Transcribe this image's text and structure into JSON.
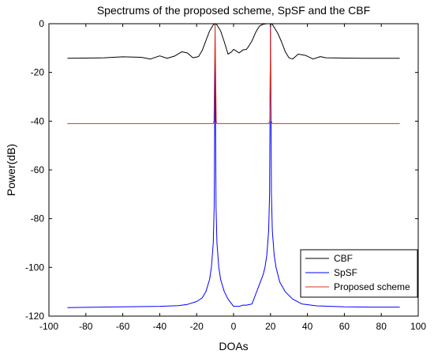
{
  "chart_data": {
    "type": "line",
    "title": "Spectrums of the proposed scheme, SpSF and the CBF",
    "xlabel": "DOAs",
    "ylabel": "Power(dB)",
    "xlim": [
      -100,
      100
    ],
    "ylim": [
      -120,
      0
    ],
    "xticks": [
      -100,
      -80,
      -60,
      -40,
      -20,
      0,
      20,
      40,
      60,
      80,
      100
    ],
    "yticks": [
      0,
      -20,
      -40,
      -60,
      -80,
      -100,
      -120
    ],
    "grid": false,
    "legend_position": "bottom-right",
    "series": [
      {
        "name": "CBF",
        "color": "#000000",
        "x": [
          -90,
          -80,
          -70,
          -60,
          -50,
          -45,
          -40,
          -36,
          -32,
          -28,
          -25,
          -22,
          -19,
          -17,
          -15,
          -13,
          -11,
          -10,
          -9,
          -7,
          -5,
          -3,
          -1,
          0,
          2,
          3,
          5,
          7,
          8,
          10,
          12,
          14,
          16,
          18,
          19,
          20,
          21,
          22,
          24,
          26,
          28,
          30,
          32,
          35,
          39,
          43,
          47,
          50,
          60,
          70,
          80,
          90
        ],
        "y": [
          -14.2,
          -14.1,
          -14.0,
          -13.6,
          -13.8,
          -14.5,
          -13.2,
          -14.2,
          -13.3,
          -11.5,
          -12.0,
          -14.0,
          -13.5,
          -11.0,
          -7.0,
          -3.0,
          -0.5,
          0,
          -0.5,
          -3.0,
          -7.5,
          -12.5,
          -11.5,
          -10.5,
          -11.5,
          -12.0,
          -10.8,
          -10.5,
          -9.5,
          -7.0,
          -3.5,
          -1.0,
          -0.2,
          0,
          0,
          0,
          -0.3,
          -1.5,
          -4.0,
          -7.5,
          -11.5,
          -14.0,
          -14.5,
          -12.5,
          -13.0,
          -14.5,
          -13.5,
          -14.0,
          -14.1,
          -14.2,
          -14.2,
          -14.2
        ]
      },
      {
        "name": "SpSF",
        "color": "#0000ff",
        "x": [
          -90,
          -80,
          -60,
          -40,
          -30,
          -25,
          -20,
          -17,
          -15,
          -13,
          -12,
          -11,
          -10.5,
          -10,
          -9.5,
          -9,
          -8,
          -7,
          -5,
          -3,
          -1,
          0,
          3,
          5,
          7,
          10,
          12,
          14,
          16,
          17,
          18,
          19,
          19.5,
          20,
          20.5,
          21,
          22,
          23,
          25,
          28,
          32,
          37,
          45,
          60,
          75,
          90
        ],
        "y": [
          -116.5,
          -116.4,
          -116.2,
          -116.0,
          -115.7,
          -115.2,
          -114.0,
          -112.5,
          -110.0,
          -105.0,
          -100.0,
          -90.0,
          -75.0,
          -10.0,
          -75.0,
          -90.0,
          -100.0,
          -105.0,
          -110.0,
          -113.0,
          -115.0,
          -116.0,
          -116.0,
          -115.5,
          -115.5,
          -115.0,
          -111.0,
          -107.0,
          -103.0,
          -100.0,
          -95.0,
          -85.0,
          -70.0,
          0.0,
          -70.0,
          -85.0,
          -95.0,
          -100.0,
          -106.0,
          -110.0,
          -113.0,
          -115.0,
          -115.8,
          -116.2,
          -116.3,
          -116.3
        ]
      },
      {
        "name": "Proposed scheme",
        "color": "#d9301f",
        "x": [
          -90,
          -11,
          -10.6,
          -10.3,
          -10,
          -9.7,
          -9.4,
          -9,
          19,
          19.6,
          19.85,
          20,
          20.15,
          20.4,
          21,
          90
        ],
        "y": [
          -41.0,
          -41.0,
          -40.0,
          -20.0,
          0.0,
          -20.0,
          -40.0,
          -41.0,
          -41.0,
          -40.0,
          -20.0,
          0.0,
          -20.0,
          -40.0,
          -41.0,
          -41.0
        ]
      }
    ]
  }
}
